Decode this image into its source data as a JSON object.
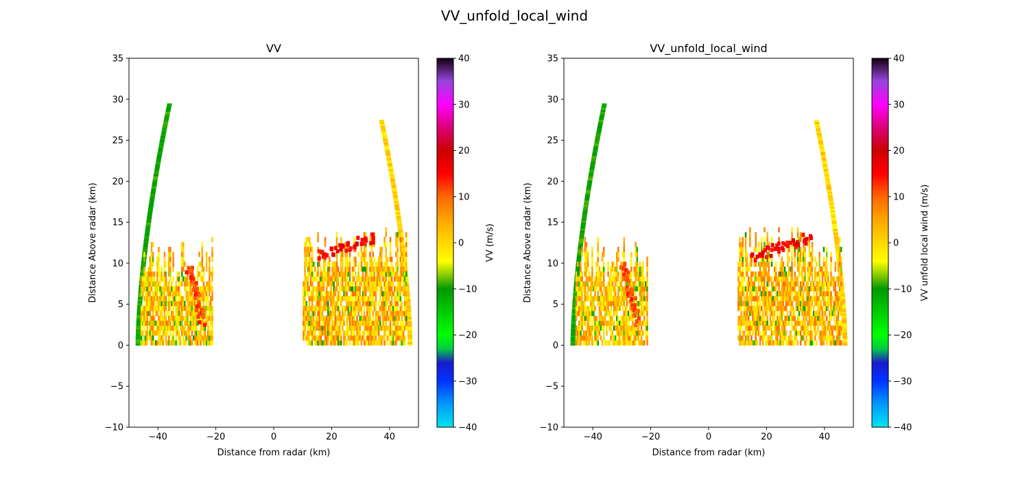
{
  "figure": {
    "suptitle": "VV_unfold_local_wind"
  },
  "chart_data": [
    {
      "type": "heatmap",
      "title": "VV",
      "xlabel": "Distance from radar (km)",
      "ylabel": "Distance Above radar  (km)",
      "xlim": [
        -50,
        50
      ],
      "ylim": [
        -10,
        35
      ],
      "xticks": [
        "−40",
        "−20",
        "0",
        "20",
        "40"
      ],
      "xtick_values": [
        -40,
        -20,
        0,
        20,
        40
      ],
      "yticks": [
        "−10",
        "−5",
        "0",
        "5",
        "10",
        "15",
        "20",
        "25",
        "30",
        "35"
      ],
      "ytick_values": [
        -10,
        -5,
        0,
        5,
        10,
        15,
        20,
        25,
        30,
        35
      ],
      "grid": false,
      "colorbar": {
        "label": "VV (m/s)",
        "range": [
          -40,
          40
        ],
        "ticks": [
          "−40",
          "−30",
          "−20",
          "−10",
          "0",
          "10",
          "20",
          "30",
          "40"
        ],
        "tick_values": [
          -40,
          -30,
          -20,
          -10,
          0,
          10,
          20,
          30,
          40
        ]
      },
      "features": [
        {
          "kind": "arc",
          "side": "left",
          "x0": -47,
          "x1": -36,
          "ymax": 29.5,
          "values": [
            -12,
            -8
          ]
        },
        {
          "kind": "arc",
          "side": "right",
          "x0": 37,
          "x1": 47,
          "ymax": 27.5,
          "values": [
            -4,
            4
          ]
        },
        {
          "kind": "region",
          "xmin": -46,
          "xmax": -21,
          "ymin": 0,
          "ymax": 13,
          "mean_value": 2
        },
        {
          "kind": "region",
          "xmin": 10,
          "xmax": 46,
          "ymin": 0,
          "ymax": 14.5,
          "mean_value": 3
        },
        {
          "kind": "streak",
          "x": [
            -30,
            -25
          ],
          "y": [
            10,
            3
          ],
          "value": 12
        },
        {
          "kind": "streak",
          "x": [
            15,
            35
          ],
          "y": [
            11,
            13.5
          ],
          "value": 16
        }
      ]
    },
    {
      "type": "heatmap",
      "title": "VV_unfold_local_wind",
      "xlabel": "Distance from radar (km)",
      "ylabel": "Distance Above radar  (km)",
      "xlim": [
        -50,
        50
      ],
      "ylim": [
        -10,
        35
      ],
      "xticks": [
        "−40",
        "−20",
        "0",
        "20",
        "40"
      ],
      "xtick_values": [
        -40,
        -20,
        0,
        20,
        40
      ],
      "yticks": [
        "−10",
        "−5",
        "0",
        "5",
        "10",
        "15",
        "20",
        "25",
        "30",
        "35"
      ],
      "ytick_values": [
        -10,
        -5,
        0,
        5,
        10,
        15,
        20,
        25,
        30,
        35
      ],
      "grid": false,
      "colorbar": {
        "label": "VV unfold local wind (m/s)",
        "range": [
          -40,
          40
        ],
        "ticks": [
          "−40",
          "−30",
          "−20",
          "−10",
          "0",
          "10",
          "20",
          "30",
          "40"
        ],
        "tick_values": [
          -40,
          -30,
          -20,
          -10,
          0,
          10,
          20,
          30,
          40
        ]
      },
      "features": [
        {
          "kind": "arc",
          "side": "left",
          "x0": -47,
          "x1": -36,
          "ymax": 29.5,
          "values": [
            -12,
            -8
          ]
        },
        {
          "kind": "arc",
          "side": "right",
          "x0": 37,
          "x1": 47,
          "ymax": 27.5,
          "values": [
            -4,
            4
          ]
        },
        {
          "kind": "region",
          "xmin": -46,
          "xmax": -21,
          "ymin": 0,
          "ymax": 13,
          "mean_value": 2
        },
        {
          "kind": "region",
          "xmin": 10,
          "xmax": 46,
          "ymin": 0,
          "ymax": 14.5,
          "mean_value": 3
        },
        {
          "kind": "streak",
          "x": [
            -30,
            -25
          ],
          "y": [
            10,
            3
          ],
          "value": 12
        },
        {
          "kind": "streak",
          "x": [
            15,
            35
          ],
          "y": [
            11,
            13.5
          ],
          "value": 16
        }
      ]
    }
  ],
  "colormap": {
    "stops": [
      [
        -40,
        "#00e5ee"
      ],
      [
        -35,
        "#0099ff"
      ],
      [
        -30,
        "#0033ff"
      ],
      [
        -26,
        "#1a1acc"
      ],
      [
        -23,
        "#00cc44"
      ],
      [
        -20,
        "#00ff00"
      ],
      [
        -15,
        "#00cc00"
      ],
      [
        -10,
        "#009900"
      ],
      [
        -7,
        "#88cc00"
      ],
      [
        -4,
        "#ffff00"
      ],
      [
        0,
        "#ffd700"
      ],
      [
        5,
        "#ffa500"
      ],
      [
        10,
        "#ff6600"
      ],
      [
        15,
        "#ff0000"
      ],
      [
        20,
        "#cc0000"
      ],
      [
        25,
        "#dd0077"
      ],
      [
        30,
        "#ff00ff"
      ],
      [
        35,
        "#9944dd"
      ],
      [
        40,
        "#110011"
      ]
    ]
  }
}
